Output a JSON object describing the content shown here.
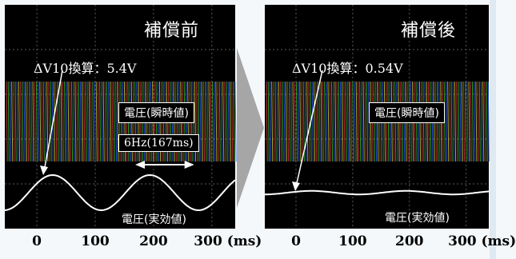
{
  "chart_data": [
    {
      "type": "line",
      "title": "補償前",
      "annotation": "ΔV10換算：5.4V",
      "band_label": "電圧(瞬時値)",
      "period_label": "6Hz(167ms)",
      "curve_label": "電圧(実効値)",
      "x_ticks": [
        "0",
        "100",
        "200",
        "300 (ms)"
      ],
      "x_tick_values": [
        0,
        100,
        200,
        300
      ],
      "xlim": [
        -55,
        340
      ],
      "series": [
        {
          "kind": "rms_flicker",
          "frequency_hz": 6,
          "period_ms": 167,
          "delta_v10_v": 5.4
        }
      ]
    },
    {
      "type": "line",
      "title": "補償後",
      "annotation": "ΔV10換算：0.54V",
      "band_label": "電圧(瞬時値)",
      "curve_label": "電圧(実効値)",
      "x_ticks": [
        "0",
        "100",
        "200",
        "300 (ms)"
      ],
      "x_tick_values": [
        0,
        100,
        200,
        300
      ],
      "xlim": [
        -55,
        340
      ],
      "series": [
        {
          "kind": "rms_flicker",
          "delta_v10_v": 0.54
        }
      ]
    }
  ],
  "colors": {
    "panel_bg": "#000000",
    "chevron": "#a6a6a6",
    "band": [
      "#e04040",
      "#40c040",
      "#3a6cff",
      "#d8d040"
    ]
  }
}
